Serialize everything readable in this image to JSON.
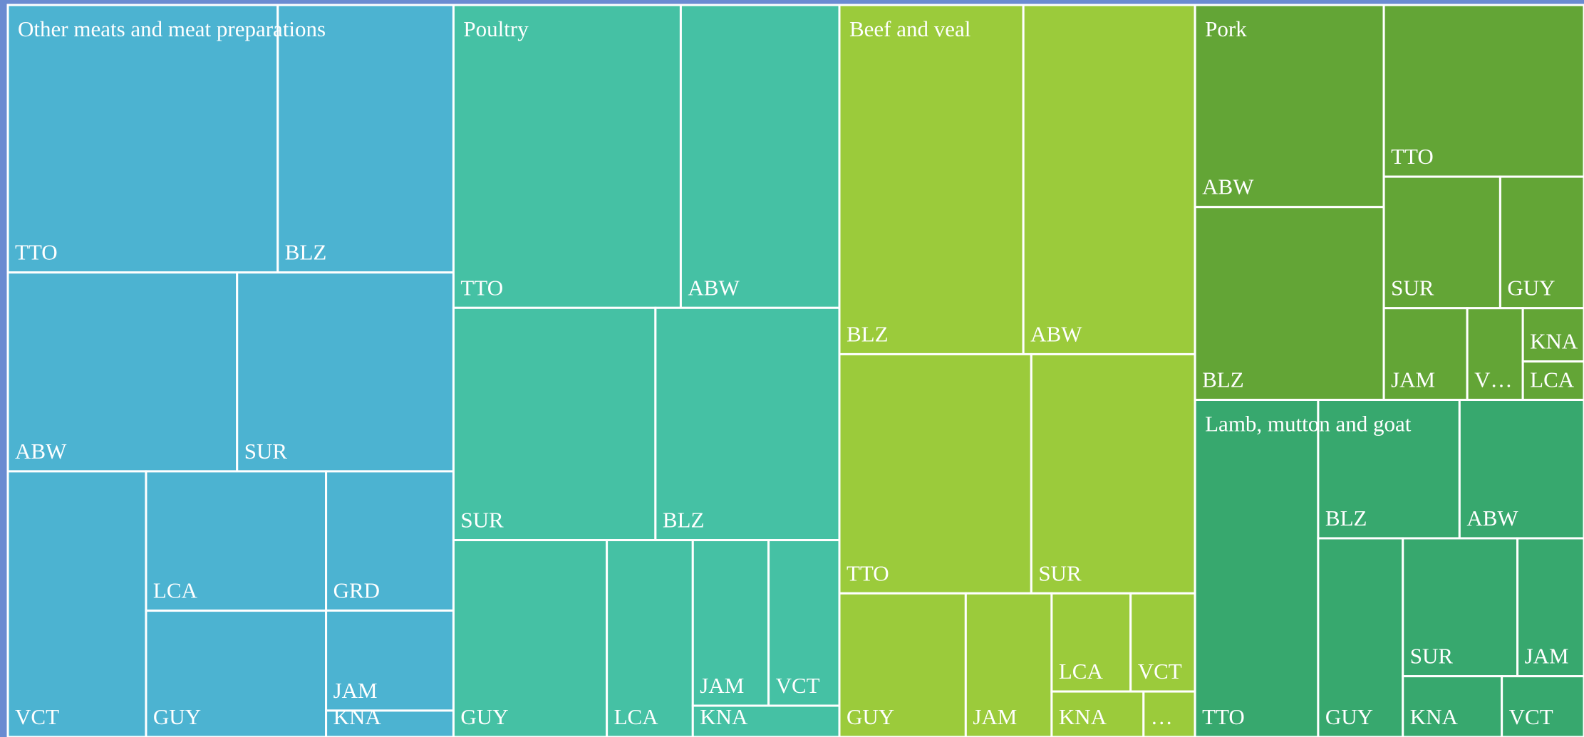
{
  "chart_data": {
    "type": "treemap",
    "groups": [
      {
        "name": "Other meats and meat preparations",
        "color": "#4cb3d1",
        "labels": [
          "TTO",
          "BLZ",
          "ABW",
          "SUR",
          "VCT",
          "LCA",
          "GUY",
          "GRD",
          "JAM",
          "KNA"
        ],
        "values": [
          70.8,
          46.1,
          44.7,
          42.2,
          36.0,
          24.6,
          22.3,
          17.4,
          12.5,
          3.3
        ]
      },
      {
        "name": "Poultry",
        "color": "#45c1a4",
        "labels": [
          "TTO",
          "ABW",
          "SUR",
          "BLZ",
          "GUY",
          "LCA",
          "JAM",
          "VCT",
          "KNA"
        ],
        "values": [
          67.5,
          47.1,
          46.0,
          41.9,
          29.6,
          16.6,
          12.3,
          11.5,
          4.5
        ]
      },
      {
        "name": "Beef and veal",
        "color": "#9bcb3b",
        "labels": [
          "BLZ",
          "ABW",
          "TTO",
          "SUR",
          "GUY",
          "JAM",
          "LCA",
          "VCT",
          "KNA",
          "…"
        ],
        "values": [
          63.0,
          58.8,
          45.0,
          38.4,
          17.8,
          12.1,
          7.6,
          6.2,
          4.1,
          2.3
        ]
      },
      {
        "name": "Pork",
        "color": "#63a536",
        "labels": [
          "ABW",
          "BLZ",
          "TTO",
          "SUR",
          "GUY",
          "JAM",
          "V…",
          "KNA",
          "LCA"
        ],
        "values": [
          37.4,
          35.7,
          33.7,
          15.0,
          10.8,
          7.5,
          5.0,
          3.2,
          2.3
        ]
      },
      {
        "name": "Lamb, mutton and goat",
        "color": "#37a86e",
        "labels": [
          "TTO",
          "BLZ",
          "ABW",
          "GUY",
          "SUR",
          "JAM",
          "KNA",
          "VCT"
        ],
        "values": [
          40.7,
          19.2,
          16.9,
          16.5,
          15.5,
          9.0,
          5.9,
          4.9
        ]
      }
    ]
  }
}
